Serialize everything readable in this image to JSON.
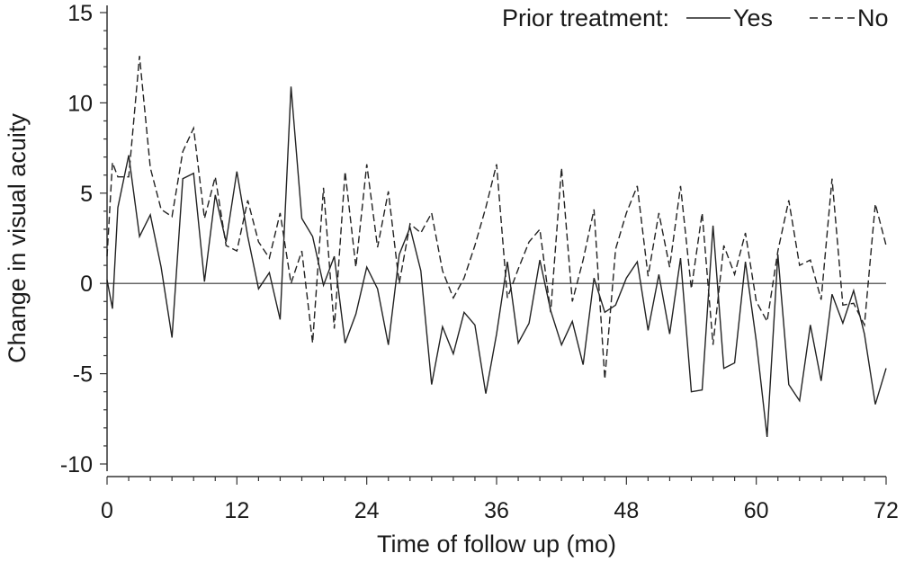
{
  "chart_data": {
    "type": "line",
    "xlabel": "Time of follow up (mo)",
    "ylabel": "Change in visual acuity",
    "xlim": [
      0,
      72
    ],
    "ylim": [
      -10,
      15
    ],
    "xticks": [
      0,
      12,
      24,
      36,
      48,
      60,
      72
    ],
    "yticks": [
      -10,
      -5,
      0,
      5,
      10,
      15
    ],
    "reference_line_y": 0,
    "legend": {
      "title": "Prior treatment:",
      "placement": "top-right"
    },
    "series": [
      {
        "name": "Yes",
        "style": "solid",
        "color": "#222222",
        "x": [
          0,
          0.5,
          1,
          2,
          3,
          4,
          5,
          6,
          7,
          8,
          9,
          10,
          11,
          12,
          13,
          14,
          15,
          16,
          17,
          18,
          19,
          20,
          21,
          22,
          23,
          24,
          25,
          26,
          27,
          28,
          29,
          30,
          31,
          32,
          33,
          34,
          35,
          36,
          37,
          38,
          39,
          40,
          41,
          42,
          43,
          44,
          45,
          46,
          47,
          48,
          49,
          50,
          51,
          52,
          53,
          54,
          55,
          56,
          57,
          58,
          59,
          60,
          61,
          62,
          63,
          64,
          65,
          66,
          67,
          68,
          69,
          70,
          71,
          72
        ],
        "values": [
          0.2,
          -1.4,
          4.2,
          7.1,
          2.6,
          3.8,
          0.9,
          -3.0,
          5.8,
          6.1,
          0.1,
          4.9,
          2.3,
          6.2,
          2.6,
          -0.3,
          0.6,
          -2.0,
          10.9,
          3.6,
          2.6,
          -0.1,
          1.5,
          -3.3,
          -1.7,
          0.9,
          -0.3,
          -3.4,
          1.6,
          3.1,
          0.7,
          -5.6,
          -2.4,
          -3.9,
          -1.6,
          -2.3,
          -6.1,
          -2.8,
          1.2,
          -3.3,
          -2.2,
          1.3,
          -1.5,
          -3.4,
          -2.1,
          -4.5,
          0.3,
          -1.6,
          -1.2,
          0.3,
          1.2,
          -2.6,
          0.5,
          -2.8,
          1.4,
          -6.0,
          -5.9,
          3.2,
          -4.7,
          -4.4,
          1.2,
          -3.2,
          -8.5,
          1.6,
          -5.6,
          -6.5,
          -2.3,
          -5.4,
          -0.6,
          -2.2,
          -0.4,
          -2.8,
          -6.7,
          -4.7
        ]
      },
      {
        "name": "No",
        "style": "dashed",
        "color": "#222222",
        "x": [
          0,
          0.5,
          1,
          2,
          3,
          4,
          5,
          6,
          7,
          8,
          9,
          10,
          11,
          12,
          13,
          14,
          15,
          16,
          17,
          18,
          19,
          20,
          21,
          22,
          23,
          24,
          25,
          26,
          27,
          28,
          29,
          30,
          31,
          32,
          33,
          34,
          35,
          36,
          37,
          38,
          39,
          40,
          41,
          42,
          43,
          44,
          45,
          46,
          47,
          48,
          49,
          50,
          51,
          52,
          53,
          54,
          55,
          56,
          57,
          58,
          59,
          60,
          61,
          62,
          63,
          64,
          65,
          66,
          67,
          68,
          69,
          70,
          71,
          72
        ],
        "values": [
          1.5,
          6.7,
          5.9,
          5.9,
          12.6,
          6.4,
          4.1,
          3.7,
          7.3,
          8.6,
          3.6,
          5.9,
          2.1,
          1.8,
          4.6,
          2.3,
          1.4,
          3.9,
          0.0,
          1.8,
          -3.3,
          5.3,
          -2.5,
          6.2,
          0.9,
          6.6,
          2.0,
          5.1,
          0.0,
          3.3,
          2.8,
          3.9,
          0.7,
          -0.8,
          0.3,
          2.1,
          4.2,
          6.6,
          -0.8,
          0.8,
          2.3,
          3.0,
          -1.6,
          6.4,
          -1.0,
          1.3,
          4.1,
          -5.3,
          1.9,
          3.9,
          5.4,
          0.4,
          3.9,
          0.9,
          5.4,
          -0.3,
          3.9,
          -3.4,
          2.1,
          0.5,
          2.8,
          -1.0,
          -2.1,
          1.8,
          4.6,
          1.0,
          1.3,
          -0.9,
          5.8,
          -1.2,
          -1.1,
          -2.3,
          4.4,
          2.1
        ]
      }
    ]
  }
}
